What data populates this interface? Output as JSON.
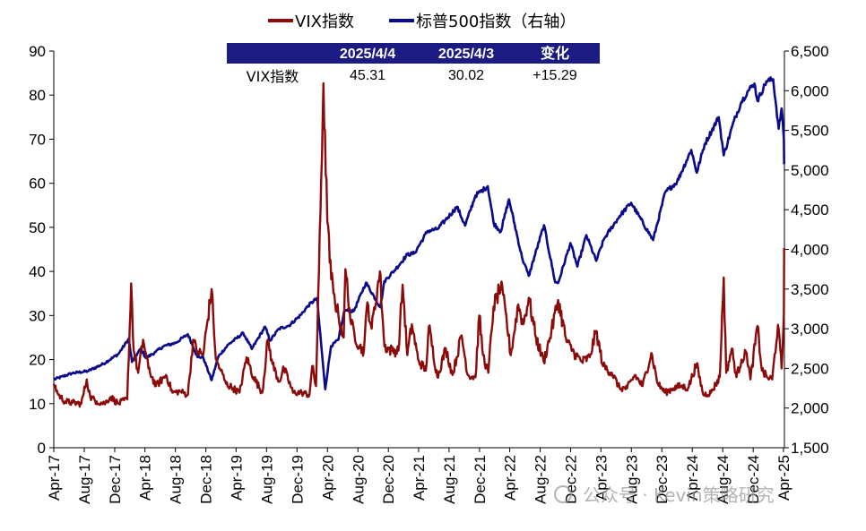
{
  "chart_data": {
    "type": "line",
    "title": "",
    "legend_position": "top-center",
    "grid": false,
    "x_tick_labels": [
      "Apr-17",
      "Aug-17",
      "Dec-17",
      "Apr-18",
      "Aug-18",
      "Dec-18",
      "Apr-19",
      "Aug-19",
      "Dec-19",
      "Apr-20",
      "Aug-20",
      "Dec-20",
      "Apr-21",
      "Aug-21",
      "Dec-21",
      "Apr-22",
      "Aug-22",
      "Dec-22",
      "Apr-23",
      "Aug-23",
      "Dec-23",
      "Apr-24",
      "Aug-24",
      "Dec-24",
      "Apr-25"
    ],
    "y_left": {
      "min": 0,
      "max": 90,
      "step": 10,
      "tick_labels": [
        "0",
        "10",
        "20",
        "30",
        "40",
        "50",
        "60",
        "70",
        "80",
        "90"
      ]
    },
    "y_right": {
      "min": 1500,
      "max": 6500,
      "step": 500,
      "tick_labels": [
        "1,500",
        "2,000",
        "2,500",
        "3,000",
        "3,500",
        "4,000",
        "4,500",
        "5,000",
        "5,500",
        "6,000",
        "6,500"
      ]
    },
    "series": [
      {
        "name": "VIX指数",
        "axis": "left",
        "color": "#8B0A0A",
        "points": [
          [
            "2017-04-01",
            14.5
          ],
          [
            "2017-04-20",
            12.0
          ],
          [
            "2017-05-15",
            10.5
          ],
          [
            "2017-06-15",
            10.2
          ],
          [
            "2017-07-20",
            10.0
          ],
          [
            "2017-08-11",
            15.5
          ],
          [
            "2017-08-25",
            11.5
          ],
          [
            "2017-09-20",
            10.5
          ],
          [
            "2017-10-20",
            10.0
          ],
          [
            "2017-11-15",
            11.5
          ],
          [
            "2017-12-15",
            10.0
          ],
          [
            "2018-01-20",
            11.0
          ],
          [
            "2018-02-05",
            37.3
          ],
          [
            "2018-02-15",
            22.0
          ],
          [
            "2018-03-05",
            17.0
          ],
          [
            "2018-03-25",
            24.5
          ],
          [
            "2018-04-15",
            18.0
          ],
          [
            "2018-05-15",
            14.0
          ],
          [
            "2018-06-25",
            16.5
          ],
          [
            "2018-07-20",
            12.5
          ],
          [
            "2018-08-20",
            12.8
          ],
          [
            "2018-09-20",
            12.0
          ],
          [
            "2018-10-11",
            24.5
          ],
          [
            "2018-10-25",
            22.0
          ],
          [
            "2018-11-20",
            21.0
          ],
          [
            "2018-12-24",
            36.0
          ],
          [
            "2019-01-10",
            20.0
          ],
          [
            "2019-01-30",
            17.5
          ],
          [
            "2019-02-20",
            14.5
          ],
          [
            "2019-03-20",
            13.5
          ],
          [
            "2019-04-15",
            12.5
          ],
          [
            "2019-05-13",
            20.5
          ],
          [
            "2019-06-10",
            16.0
          ],
          [
            "2019-07-15",
            12.5
          ],
          [
            "2019-08-06",
            24.5
          ],
          [
            "2019-08-25",
            19.0
          ],
          [
            "2019-09-20",
            15.0
          ],
          [
            "2019-10-10",
            18.0
          ],
          [
            "2019-11-15",
            12.5
          ],
          [
            "2019-12-20",
            12.5
          ],
          [
            "2020-01-20",
            12.0
          ],
          [
            "2020-01-31",
            18.5
          ],
          [
            "2020-02-15",
            14.0
          ],
          [
            "2020-02-27",
            40.0
          ],
          [
            "2020-03-16",
            82.7
          ],
          [
            "2020-03-25",
            62.0
          ],
          [
            "2020-04-10",
            42.0
          ],
          [
            "2020-04-25",
            35.0
          ],
          [
            "2020-05-15",
            30.0
          ],
          [
            "2020-06-05",
            25.0
          ],
          [
            "2020-06-12",
            40.5
          ],
          [
            "2020-07-05",
            28.0
          ],
          [
            "2020-08-05",
            23.0
          ],
          [
            "2020-08-25",
            22.0
          ],
          [
            "2020-09-08",
            33.0
          ],
          [
            "2020-09-25",
            27.0
          ],
          [
            "2020-10-28",
            40.0
          ],
          [
            "2020-11-15",
            23.0
          ],
          [
            "2020-12-15",
            22.0
          ],
          [
            "2021-01-10",
            22.0
          ],
          [
            "2021-01-27",
            37.0
          ],
          [
            "2021-02-15",
            21.0
          ],
          [
            "2021-03-05",
            28.0
          ],
          [
            "2021-03-30",
            20.0
          ],
          [
            "2021-04-30",
            17.5
          ],
          [
            "2021-05-12",
            27.5
          ],
          [
            "2021-06-15",
            16.0
          ],
          [
            "2021-07-19",
            22.5
          ],
          [
            "2021-08-15",
            16.5
          ],
          [
            "2021-09-20",
            25.5
          ],
          [
            "2021-10-15",
            16.5
          ],
          [
            "2021-11-15",
            16.0
          ],
          [
            "2021-11-30",
            30.0
          ],
          [
            "2021-12-15",
            21.0
          ],
          [
            "2022-01-05",
            17.0
          ],
          [
            "2022-01-26",
            32.0
          ],
          [
            "2022-02-24",
            36.5
          ],
          [
            "2022-03-15",
            31.0
          ],
          [
            "2022-04-05",
            21.0
          ],
          [
            "2022-05-05",
            32.5
          ],
          [
            "2022-05-25",
            28.0
          ],
          [
            "2022-06-16",
            34.0
          ],
          [
            "2022-07-15",
            25.0
          ],
          [
            "2022-08-15",
            19.5
          ],
          [
            "2022-09-15",
            26.5
          ],
          [
            "2022-10-12",
            33.5
          ],
          [
            "2022-11-15",
            24.0
          ],
          [
            "2022-12-15",
            21.5
          ],
          [
            "2023-01-15",
            19.5
          ],
          [
            "2023-02-15",
            20.5
          ],
          [
            "2023-03-13",
            26.5
          ],
          [
            "2023-04-10",
            18.5
          ],
          [
            "2023-05-15",
            17.0
          ],
          [
            "2023-06-15",
            13.5
          ],
          [
            "2023-07-15",
            13.5
          ],
          [
            "2023-08-15",
            16.5
          ],
          [
            "2023-09-15",
            14.0
          ],
          [
            "2023-10-20",
            21.5
          ],
          [
            "2023-11-15",
            14.5
          ],
          [
            "2023-12-15",
            12.5
          ],
          [
            "2024-01-15",
            13.5
          ],
          [
            "2024-02-15",
            14.0
          ],
          [
            "2024-03-15",
            13.5
          ],
          [
            "2024-04-18",
            19.0
          ],
          [
            "2024-05-15",
            12.0
          ],
          [
            "2024-06-15",
            12.5
          ],
          [
            "2024-07-20",
            16.0
          ],
          [
            "2024-08-05",
            38.6
          ],
          [
            "2024-08-15",
            17.0
          ],
          [
            "2024-09-06",
            22.5
          ],
          [
            "2024-09-25",
            16.0
          ],
          [
            "2024-10-15",
            20.0
          ],
          [
            "2024-11-05",
            21.5
          ],
          [
            "2024-11-20",
            15.5
          ],
          [
            "2024-12-18",
            27.6
          ],
          [
            "2025-01-05",
            17.5
          ],
          [
            "2025-01-25",
            16.0
          ],
          [
            "2025-02-15",
            15.5
          ],
          [
            "2025-03-10",
            27.9
          ],
          [
            "2025-03-25",
            18.0
          ],
          [
            "2025-04-03",
            30.02
          ],
          [
            "2025-04-04",
            45.31
          ]
        ]
      },
      {
        "name": "标普500指数（右轴）",
        "axis": "right",
        "color": "#0A0A8B",
        "points": [
          [
            "2017-04-01",
            2360
          ],
          [
            "2017-06-15",
            2440
          ],
          [
            "2017-08-15",
            2465
          ],
          [
            "2017-10-15",
            2555
          ],
          [
            "2017-12-15",
            2680
          ],
          [
            "2018-01-26",
            2872
          ],
          [
            "2018-02-08",
            2581
          ],
          [
            "2018-03-15",
            2750
          ],
          [
            "2018-04-05",
            2630
          ],
          [
            "2018-05-15",
            2710
          ],
          [
            "2018-06-15",
            2780
          ],
          [
            "2018-08-01",
            2820
          ],
          [
            "2018-09-20",
            2930
          ],
          [
            "2018-10-29",
            2641
          ],
          [
            "2018-11-20",
            2640
          ],
          [
            "2018-12-24",
            2351
          ],
          [
            "2019-01-20",
            2650
          ],
          [
            "2019-03-01",
            2800
          ],
          [
            "2019-04-30",
            2945
          ],
          [
            "2019-06-03",
            2744
          ],
          [
            "2019-07-26",
            3025
          ],
          [
            "2019-08-15",
            2850
          ],
          [
            "2019-09-20",
            3000
          ],
          [
            "2019-10-30",
            3040
          ],
          [
            "2019-12-15",
            3170
          ],
          [
            "2020-01-15",
            3290
          ],
          [
            "2020-02-19",
            3386
          ],
          [
            "2020-03-23",
            2237
          ],
          [
            "2020-04-15",
            2780
          ],
          [
            "2020-05-15",
            2860
          ],
          [
            "2020-06-08",
            3232
          ],
          [
            "2020-07-15",
            3220
          ],
          [
            "2020-09-02",
            3580
          ],
          [
            "2020-10-30",
            3270
          ],
          [
            "2020-11-15",
            3600
          ],
          [
            "2020-12-31",
            3756
          ],
          [
            "2021-02-15",
            3935
          ],
          [
            "2021-03-15",
            3950
          ],
          [
            "2021-05-07",
            4232
          ],
          [
            "2021-06-15",
            4255
          ],
          [
            "2021-07-15",
            4360
          ],
          [
            "2021-09-02",
            4537
          ],
          [
            "2021-10-04",
            4300
          ],
          [
            "2021-11-15",
            4680
          ],
          [
            "2022-01-03",
            4796
          ],
          [
            "2022-01-27",
            4326
          ],
          [
            "2022-02-24",
            4225
          ],
          [
            "2022-03-29",
            4631
          ],
          [
            "2022-05-20",
            3900
          ],
          [
            "2022-06-16",
            3666
          ],
          [
            "2022-08-16",
            4305
          ],
          [
            "2022-09-30",
            3585
          ],
          [
            "2022-10-12",
            3577
          ],
          [
            "2022-11-30",
            4080
          ],
          [
            "2022-12-28",
            3783
          ],
          [
            "2023-02-02",
            4179
          ],
          [
            "2023-03-13",
            3855
          ],
          [
            "2023-04-15",
            4140
          ],
          [
            "2023-06-15",
            4420
          ],
          [
            "2023-07-31",
            4588
          ],
          [
            "2023-10-27",
            4117
          ],
          [
            "2023-12-15",
            4720
          ],
          [
            "2024-01-31",
            4850
          ],
          [
            "2024-03-28",
            5254
          ],
          [
            "2024-04-19",
            4967
          ],
          [
            "2024-05-20",
            5320
          ],
          [
            "2024-07-16",
            5667
          ],
          [
            "2024-08-05",
            5186
          ],
          [
            "2024-09-15",
            5620
          ],
          [
            "2024-10-15",
            5860
          ],
          [
            "2024-11-11",
            6001
          ],
          [
            "2024-12-06",
            6090
          ],
          [
            "2024-12-18",
            5872
          ],
          [
            "2025-01-23",
            6118
          ],
          [
            "2025-02-19",
            6144
          ],
          [
            "2025-03-13",
            5521
          ],
          [
            "2025-03-25",
            5777
          ],
          [
            "2025-04-03",
            5396
          ],
          [
            "2025-04-04",
            5074
          ]
        ]
      }
    ]
  },
  "legend": {
    "items": [
      {
        "label": "VIX指数",
        "color": "#8B0A0A"
      },
      {
        "label": "标普500指数（右轴）",
        "color": "#0A0A8B"
      }
    ]
  },
  "table": {
    "header_bg": "#1B1B82",
    "headers": [
      "2025/4/4",
      "2025/4/3",
      "变化"
    ],
    "row_label": "VIX指数",
    "values": [
      "45.31",
      "30.02",
      "+15.29"
    ]
  },
  "watermark": "公众号 · Kevin策略研究"
}
